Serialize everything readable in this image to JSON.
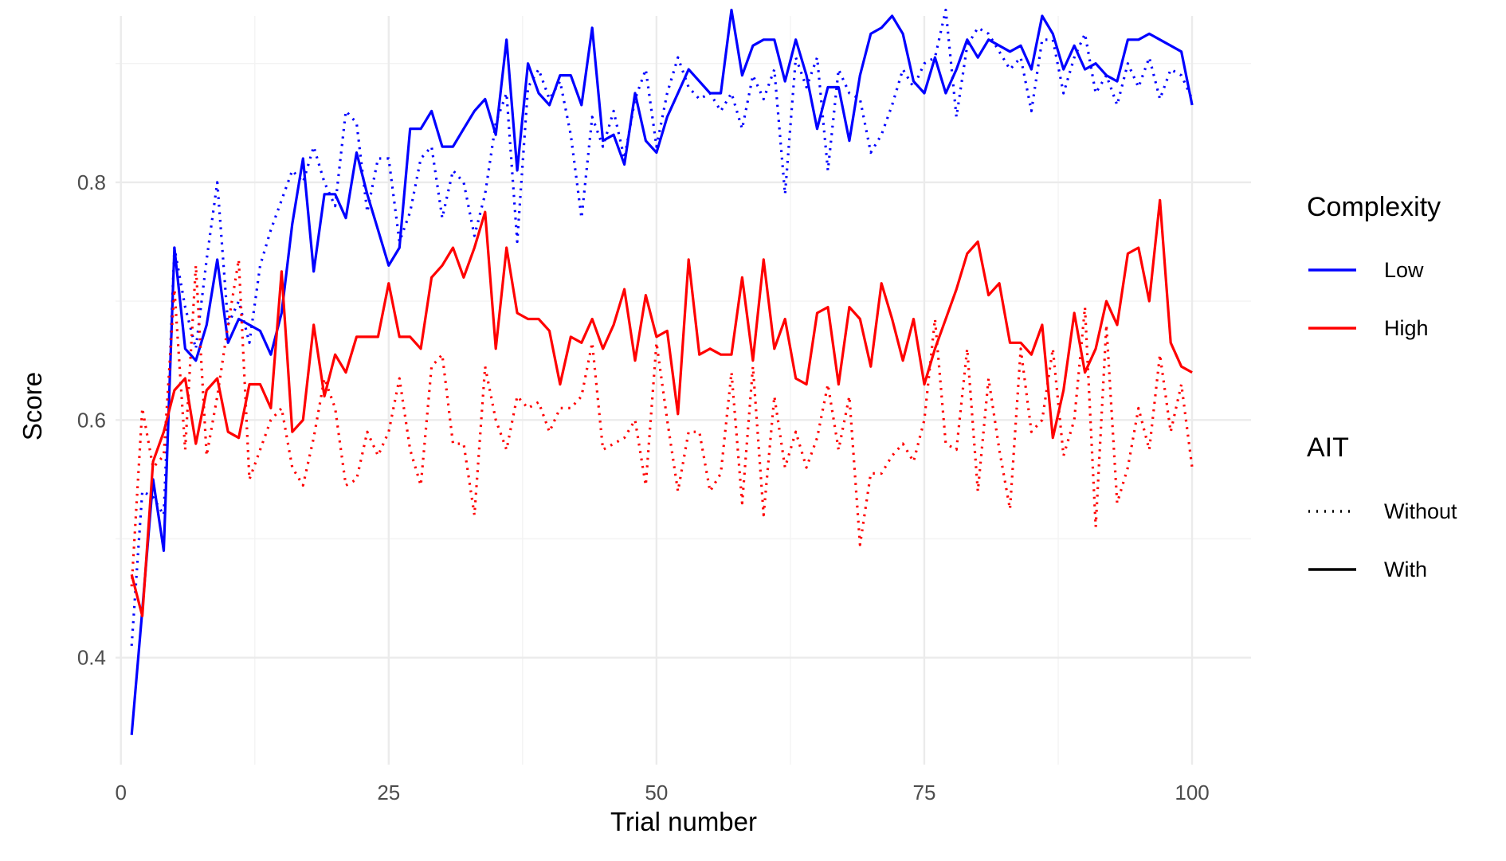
{
  "chart_data": {
    "type": "line",
    "title": "",
    "xlabel": "Trial number",
    "ylabel": "Score",
    "xlim": [
      -0.5,
      105.5
    ],
    "ylim": [
      0.31,
      0.94
    ],
    "x_ticks": [
      0,
      25,
      50,
      75,
      100
    ],
    "y_ticks": [
      0.4,
      0.6,
      0.8
    ],
    "x_tick_labels": [
      "0",
      "25",
      "50",
      "75",
      "100"
    ],
    "y_tick_labels": [
      "0.4",
      "0.6",
      "0.8"
    ],
    "grid": true,
    "legend": {
      "placement": "right",
      "complexity": {
        "title": "Complexity",
        "entries": [
          {
            "label": "Low",
            "color": "#0000ff"
          },
          {
            "label": "High",
            "color": "#ff0000"
          }
        ]
      },
      "ait": {
        "title": "AIT",
        "entries": [
          {
            "label": "Without",
            "linestyle": "dotted"
          },
          {
            "label": "With",
            "linestyle": "solid"
          }
        ]
      }
    },
    "x": [
      1,
      2,
      3,
      4,
      5,
      6,
      7,
      8,
      9,
      10,
      11,
      12,
      13,
      14,
      15,
      16,
      17,
      18,
      19,
      20,
      21,
      22,
      23,
      24,
      25,
      26,
      27,
      28,
      29,
      30,
      31,
      32,
      33,
      34,
      35,
      36,
      37,
      38,
      39,
      40,
      41,
      42,
      43,
      44,
      45,
      46,
      47,
      48,
      49,
      50,
      51,
      52,
      53,
      54,
      55,
      56,
      57,
      58,
      59,
      60,
      61,
      62,
      63,
      64,
      65,
      66,
      67,
      68,
      69,
      70,
      71,
      72,
      73,
      74,
      75,
      76,
      77,
      78,
      79,
      80,
      81,
      82,
      83,
      84,
      85,
      86,
      87,
      88,
      89,
      90,
      91,
      92,
      93,
      94,
      95,
      96,
      97,
      98,
      99,
      100
    ],
    "series": [
      {
        "complexity": "Low",
        "ait": "With",
        "color": "#0000ff",
        "linestyle": "solid",
        "values": [
          0.335,
          0.44,
          0.55,
          0.49,
          0.745,
          0.66,
          0.65,
          0.68,
          0.735,
          0.665,
          0.685,
          0.68,
          0.675,
          0.655,
          0.69,
          0.765,
          0.82,
          0.725,
          0.79,
          0.79,
          0.77,
          0.825,
          0.79,
          0.76,
          0.73,
          0.745,
          0.845,
          0.845,
          0.86,
          0.83,
          0.83,
          0.845,
          0.86,
          0.87,
          0.84,
          0.92,
          0.81,
          0.9,
          0.875,
          0.865,
          0.89,
          0.89,
          0.865,
          0.93,
          0.835,
          0.84,
          0.815,
          0.875,
          0.835,
          0.825,
          0.855,
          0.875,
          0.895,
          0.885,
          0.875,
          0.875,
          0.945,
          0.89,
          0.915,
          0.92,
          0.92,
          0.885,
          0.92,
          0.89,
          0.845,
          0.88,
          0.88,
          0.835,
          0.89,
          0.925,
          0.93,
          0.94,
          0.925,
          0.885,
          0.875,
          0.905,
          0.875,
          0.895,
          0.92,
          0.905,
          0.92,
          0.915,
          0.91,
          0.915,
          0.895,
          0.94,
          0.925,
          0.895,
          0.915,
          0.895,
          0.9,
          0.89,
          0.885,
          0.92,
          0.92,
          0.925,
          0.92,
          0.915,
          0.91,
          0.865
        ]
      },
      {
        "complexity": "Low",
        "ait": "Without",
        "color": "#0000ff",
        "linestyle": "dotted",
        "values": [
          0.41,
          0.54,
          0.535,
          0.52,
          0.745,
          0.695,
          0.66,
          0.735,
          0.8,
          0.68,
          0.7,
          0.665,
          0.73,
          0.76,
          0.785,
          0.81,
          0.8,
          0.83,
          0.8,
          0.78,
          0.86,
          0.85,
          0.775,
          0.82,
          0.82,
          0.75,
          0.775,
          0.82,
          0.83,
          0.77,
          0.81,
          0.8,
          0.755,
          0.79,
          0.85,
          0.875,
          0.75,
          0.88,
          0.895,
          0.87,
          0.885,
          0.84,
          0.77,
          0.855,
          0.83,
          0.86,
          0.82,
          0.87,
          0.895,
          0.83,
          0.875,
          0.905,
          0.88,
          0.87,
          0.875,
          0.86,
          0.875,
          0.845,
          0.89,
          0.87,
          0.895,
          0.79,
          0.905,
          0.88,
          0.905,
          0.81,
          0.895,
          0.875,
          0.87,
          0.825,
          0.84,
          0.865,
          0.895,
          0.88,
          0.9,
          0.905,
          0.945,
          0.855,
          0.915,
          0.93,
          0.925,
          0.91,
          0.895,
          0.905,
          0.86,
          0.92,
          0.92,
          0.875,
          0.905,
          0.925,
          0.875,
          0.89,
          0.865,
          0.9,
          0.88,
          0.905,
          0.87,
          0.895,
          0.89,
          0.87
        ]
      },
      {
        "complexity": "High",
        "ait": "With",
        "color": "#ff0000",
        "linestyle": "solid",
        "values": [
          0.47,
          0.435,
          0.565,
          0.59,
          0.625,
          0.635,
          0.58,
          0.625,
          0.635,
          0.59,
          0.585,
          0.63,
          0.63,
          0.61,
          0.725,
          0.59,
          0.6,
          0.68,
          0.62,
          0.655,
          0.64,
          0.67,
          0.67,
          0.67,
          0.715,
          0.67,
          0.67,
          0.66,
          0.72,
          0.73,
          0.745,
          0.72,
          0.745,
          0.775,
          0.66,
          0.745,
          0.69,
          0.685,
          0.685,
          0.675,
          0.63,
          0.67,
          0.665,
          0.685,
          0.66,
          0.68,
          0.71,
          0.65,
          0.705,
          0.67,
          0.675,
          0.605,
          0.735,
          0.655,
          0.66,
          0.655,
          0.655,
          0.72,
          0.65,
          0.735,
          0.66,
          0.685,
          0.635,
          0.63,
          0.69,
          0.695,
          0.63,
          0.695,
          0.685,
          0.645,
          0.715,
          0.685,
          0.65,
          0.685,
          0.63,
          0.66,
          0.685,
          0.71,
          0.74,
          0.75,
          0.705,
          0.715,
          0.665,
          0.665,
          0.655,
          0.68,
          0.585,
          0.625,
          0.69,
          0.64,
          0.66,
          0.7,
          0.68,
          0.74,
          0.745,
          0.7,
          0.785,
          0.665,
          0.645,
          0.64
        ]
      },
      {
        "complexity": "High",
        "ait": "Without",
        "color": "#ff0000",
        "linestyle": "dotted",
        "values": [
          0.46,
          0.61,
          0.56,
          0.57,
          0.71,
          0.575,
          0.73,
          0.57,
          0.62,
          0.68,
          0.735,
          0.55,
          0.575,
          0.6,
          0.61,
          0.56,
          0.545,
          0.585,
          0.635,
          0.61,
          0.545,
          0.55,
          0.59,
          0.57,
          0.59,
          0.635,
          0.575,
          0.545,
          0.645,
          0.655,
          0.58,
          0.58,
          0.52,
          0.645,
          0.6,
          0.575,
          0.62,
          0.61,
          0.615,
          0.59,
          0.61,
          0.61,
          0.62,
          0.665,
          0.575,
          0.58,
          0.585,
          0.6,
          0.545,
          0.665,
          0.6,
          0.54,
          0.59,
          0.59,
          0.54,
          0.555,
          0.64,
          0.53,
          0.645,
          0.52,
          0.62,
          0.56,
          0.59,
          0.56,
          0.585,
          0.63,
          0.575,
          0.62,
          0.495,
          0.555,
          0.555,
          0.57,
          0.58,
          0.565,
          0.6,
          0.685,
          0.58,
          0.575,
          0.66,
          0.54,
          0.635,
          0.575,
          0.525,
          0.66,
          0.59,
          0.6,
          0.66,
          0.57,
          0.6,
          0.695,
          0.51,
          0.68,
          0.53,
          0.56,
          0.61,
          0.575,
          0.655,
          0.59,
          0.63,
          0.56
        ]
      }
    ]
  }
}
